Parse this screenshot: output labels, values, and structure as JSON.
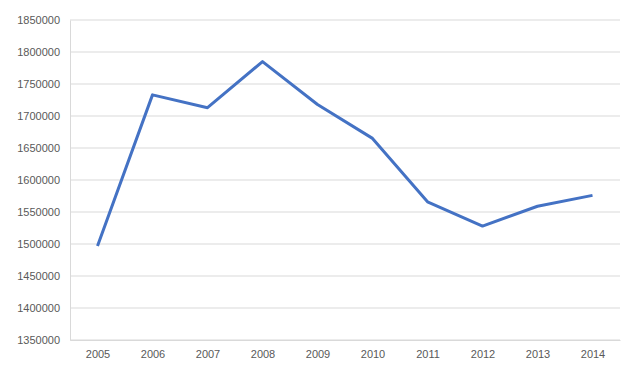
{
  "chart_data": {
    "type": "line",
    "categories": [
      "2005",
      "2006",
      "2007",
      "2008",
      "2009",
      "2010",
      "2011",
      "2012",
      "2013",
      "2014"
    ],
    "values": [
      1497000,
      1733000,
      1713000,
      1785000,
      1718000,
      1665000,
      1566000,
      1528000,
      1559000,
      1576000
    ],
    "color": "#4472c4",
    "ylim": [
      1350000,
      1850000
    ],
    "yticks": [
      1350000,
      1400000,
      1450000,
      1500000,
      1550000,
      1600000,
      1650000,
      1700000,
      1750000,
      1800000,
      1850000
    ],
    "grid": true
  }
}
